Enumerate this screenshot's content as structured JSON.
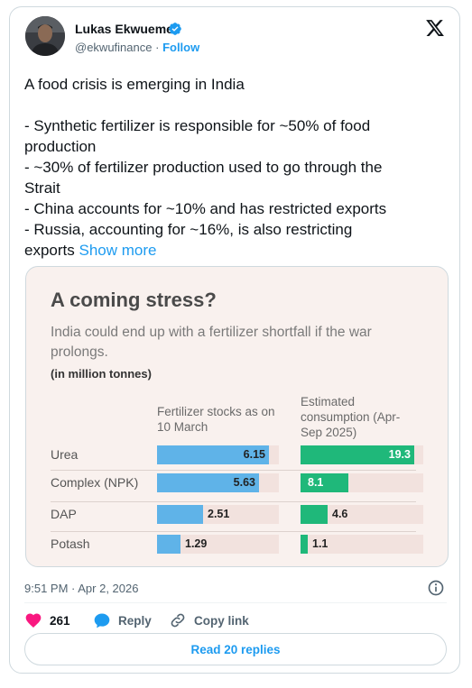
{
  "author": {
    "name": "Lukas Ekwueme",
    "handle": "@ekwufinance",
    "separator": "·",
    "follow_label": "Follow"
  },
  "tweet": {
    "lines": [
      "A food crisis is emerging in India",
      "- Synthetic fertilizer is responsible for ~50% of food",
      "production",
      "- ~30% of fertilizer production used to go through the",
      "Strait",
      "- China accounts for ~10% and has restricted exports",
      "- Russia, accounting for ~16%, is also restricting",
      "exports"
    ],
    "show_more": "Show more"
  },
  "chart_data": {
    "type": "table",
    "title": "A coming stress?",
    "subtitle": "India could end up with a fertilizer shortfall if the war prolongs.",
    "unit": "(in million tonnes)",
    "columns": [
      "Fertilizer stocks as on 10 March",
      "Estimated consumption (Apr-Sep 2025)"
    ],
    "categories": [
      "Urea",
      "Complex (NPK)",
      "DAP",
      "Potash"
    ],
    "series": [
      {
        "name": "Fertilizer stocks as on 10 March",
        "values": [
          6.15,
          5.63,
          2.51,
          1.29
        ],
        "color": "#5fb3e8"
      },
      {
        "name": "Estimated consumption (Apr-Sep 2025)",
        "values": [
          19.3,
          8.1,
          4.6,
          1.1
        ],
        "color": "#1fb87a"
      }
    ],
    "labels": [
      [
        "6.15",
        "5.63",
        "2.51",
        "1.29"
      ],
      [
        "19.3",
        "8.1",
        "4.6",
        "1.1"
      ]
    ],
    "col_max": [
      6.7,
      20.8
    ]
  },
  "footer": {
    "timestamp": "9:51 PM · Apr 2, 2026",
    "likes": "261",
    "reply_label": "Reply",
    "copy_link_label": "Copy link",
    "read_replies_label": "Read 20 replies"
  },
  "colors": {
    "accent": "#1d9bf0",
    "like": "#f91880"
  },
  "icons": [
    "verified-badge-icon",
    "x-logo-icon",
    "info-icon",
    "heart-icon",
    "reply-bubble-icon",
    "link-icon"
  ]
}
